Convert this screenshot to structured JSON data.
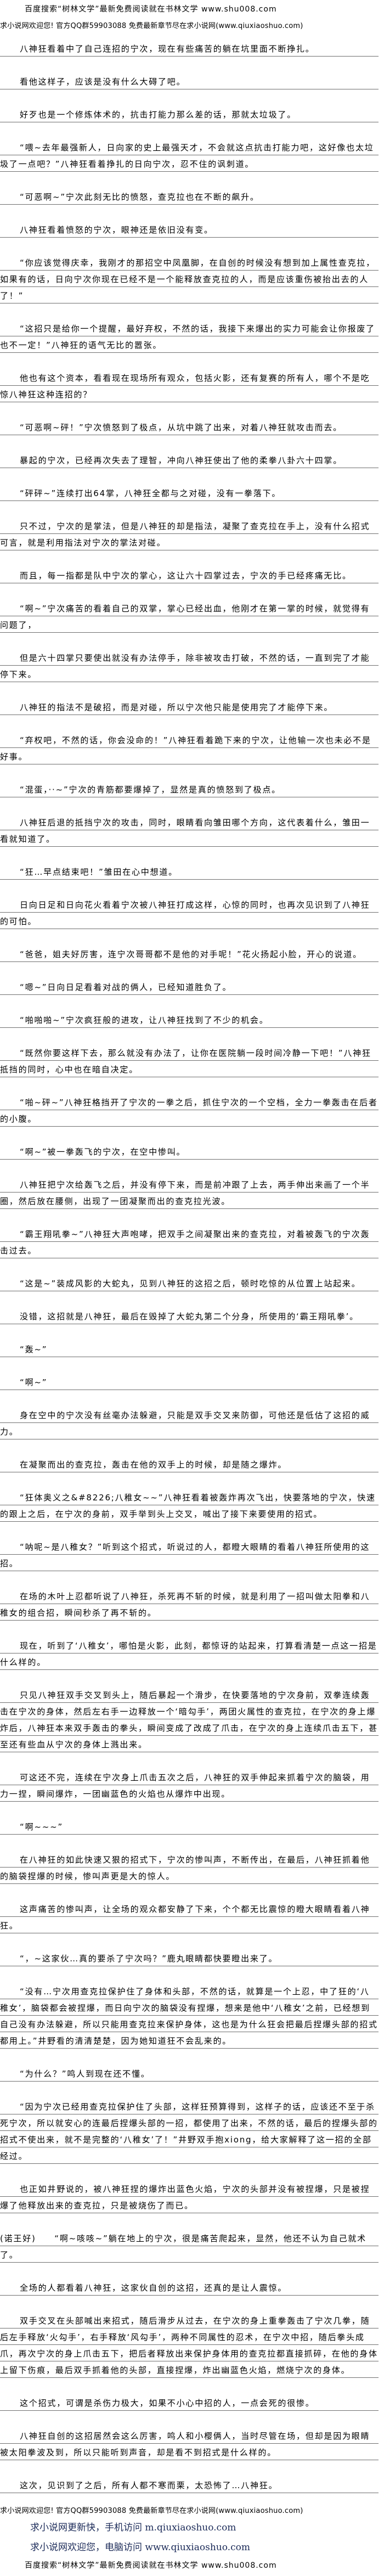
{
  "header": {
    "banner": "百度搜索“树林文学”最新免费阅读就在书林文学 www.shu008.com",
    "qq_banner": "求小说网欢迎您! 官方QQ群59903088 免费最新章节尽在求小说网(www.qiuxiaoshuo.com)"
  },
  "paragraphs": [
    {
      "text": "八神狂看着中了自己连招的宁次，现在有些痛苦的躺在坑里面不断挣扎。"
    },
    {
      "text": "看他这样子，应该是没有什么大碍了吧。"
    },
    {
      "text": "好歹也是一个修炼体术的，抗击打能力那么差的话，那就太垃圾了。"
    },
    {
      "text": "“喂~去年最强新人，日向家的史上最强天才，不会就这点抗击打能力吧，这好像也太垃圾了一点吧？”八神狂看着挣扎的日向宁次，忍不住的讽刺道。"
    },
    {
      "text": "“可恶啊~”宁次此刻无比的愤怒，查克拉也在不断的飙升。"
    },
    {
      "text": "八神狂看着愤怒的宁次，眼神还是依旧没有变。"
    },
    {
      "text": "“你应该觉得庆幸，我刚才的那招空中凤凰脚，在自创的时候没有想到加上属性查克拉，如果有的话，日向宁次你现在已经不是一个能释放查克拉的人，而是应该重伤被抬出去的人了！”"
    },
    {
      "text": "“这招只是给你一个提醒，最好弃权，不然的话，我接下来爆出的实力可能会让你报废了也不一定！”八神狂的语气无比的嚣张。"
    },
    {
      "text": "他也有这个资本，看看现在现场所有观众，包括火影，还有复赛的所有人，哪个不是吃惊八神狂这种连招的？"
    },
    {
      "text": "“可恶啊~砰！”宁次愤怒到了极点，从坑中跳了出来，对着八神狂就攻击而去。"
    },
    {
      "text": "暴起的宁次，已经再次失去了理智，冲向八神狂使出了他的柔拳八卦六十四掌。"
    },
    {
      "text": "“砰砰~”连续打出64掌，八神狂全都与之对碰，没有一拳落下。"
    },
    {
      "text": "只不过，宁次的是掌法，但是八神狂的却是指法，凝聚了查克拉在手上，没有什么招式可言，就是利用指法对宁次的掌法对碰。"
    },
    {
      "text": "而且，每一指都是队中宁次的掌心，这让六十四掌过去，宁次的手已经疼痛无比。"
    },
    {
      "text": "“啊~”宁次痛苦的看着自己的双掌，掌心已经出血，他刚才在第一掌的时候，就觉得有问题了，"
    },
    {
      "text": "但是六十四掌只要使出就没有办法停手，除非被攻击打破，不然的话，一直到完了才能停下来。"
    },
    {
      "text": "八神狂的指法不是破招，而是对碰，所以宁次他只能是使用完了才能停下来。"
    },
    {
      "text": "“弃权吧，不然的话，你会没命的！”八神狂看着跪下来的宁次，让他输一次也未必不是好事。"
    },
    {
      "text": "“混蛋，··~”宁次的青筋都要爆掉了，显然是真的愤怒到了极点。"
    },
    {
      "text": "八神狂后退的抵挡宁次的攻击，同时，眼睛看向雏田哪个方向，这代表着什么，雏田一看就知道了。"
    },
    {
      "text": "“狂…早点结束吧！”雏田在心中想道。"
    },
    {
      "text": "日向日足和日向花火看着宁次被八神狂打成这样，心惊的同时，也再次见识到了八神狂的可怕。"
    },
    {
      "text": "“爸爸，姐夫好厉害，连宁次哥哥都不是他的对手呢！”花火扬起小脸，开心的说道。"
    },
    {
      "text": "“嗯~”日向日足看着对战的俩人，已经知道胜负了。"
    },
    {
      "text": "“啪啪啪~”宁次疯狂般的进攻，让八神狂找到了不少的机会。"
    },
    {
      "text": "“既然你要这样下去，那么就没有办法了，让你在医院躺一段时间冷静一下吧！”八神狂抵挡的同时，心中也在暗自决定。"
    },
    {
      "text": "“啪~砰~”八神狂格挡开了宁次的一拳之后，抓住宁次的一个空档，全力一拳轰击在后者的小腹。"
    },
    {
      "text": "“啊~”被一拳轰飞的宁次，在空中惨叫。"
    },
    {
      "text": "八神狂把宁次给轰飞之后，并没有停下来，而是前冲跟了上去，两手伸出来画了一个半圈，然后放在腰侧，出现了一团凝聚而出的查克拉光波。"
    },
    {
      "text": "“霸王翔吼拳~”八神狂大声咆哮，把双手之间凝聚出来的查克拉，对着被轰飞的宁次轰击过去。"
    },
    {
      "text": "“这是~”装成风影的大蛇丸，见到八神狂的这招之后，顿时吃惊的从位置上站起来。"
    },
    {
      "text": "没错，这招就是八神狂，最后在毁掉了大蛇丸第二个分身，所使用的‘霸王翔吼拳’。"
    },
    {
      "text": "“轰~”"
    },
    {
      "text": "“啊~”"
    },
    {
      "text": "身在空中的宁次没有丝毫办法躲避，只能是双手交叉来防御，可他还是低估了这招的威力。"
    },
    {
      "text": "在凝聚而出的查克拉，轰击在他的双手上的时候，却是随之爆炸。"
    },
    {
      "text": "“狂体奥义之&#8226;八稚女~~”八神狂看着被轰炸再次飞出，快要落地的宁次，快速的跟上之后，在宁次的身前，双手举到头上交叉，喊出了接下来要使用的招式。"
    },
    {
      "text": "“呐呢~是八稚女？”听到这个招式，听说过的人，都瞪大眼睛的看着八神狂所使用的这招。"
    },
    {
      "text": "在场的木叶上忍都听说了八神狂，杀死再不斩的时候，就是利用了一招叫做太阳拳和八稚女的组合招，瞬间秒杀了再不斩的。"
    },
    {
      "text": "现在，听到了‘八稚女’，哪怕是火影，此刻，都惊讶的站起来，打算看清楚一点这一招是什么样的。"
    },
    {
      "text": "只见八神狂双手交叉到头上，随后暴起一个滑步，在快要落地的宁次身前，双拳连续轰击在宁次的身体，然后左右手一边释放一个‘暗勾手’，两团火属性的查克拉，在宁次的身上爆炸后，八神狂本来双手轰击的拳头，瞬间变成了改成了爪击，在宁次的身上连续爪击五下，甚至还有些血从宁次的身体上溅出来。"
    },
    {
      "text": "可这还不完，连续在宁次身上爪击五次之后，八神狂的双手伸起来抓着宁次的脑袋，用力一捏，瞬间爆炸，一团幽蓝色的火焰也从爆炸中出现。"
    },
    {
      "text": "“啊~~~”"
    },
    {
      "text": "在八神狂的如此快速又狠的招式下，宁次的惨叫声，不断传出，在最后，八神狂抓着他的脑袋捏爆的时候，惨叫声更是大的惊人。"
    },
    {
      "text": "这声痛苦的惨叫声，让全场的观众都安静了下来，个个都无比震惊的瞪大眼睛看着八神狂。"
    },
    {
      "text": "“，~这家伙…真的要杀了宁次吗？”鹿丸眼睛都快要瞪出来了。"
    },
    {
      "text": "“没有…宁次用查克拉保护住了身体和头部，不然的话，就算是一个上忍，中了狂的‘八稚女’，脑袋都会被捏爆，而日向宁次的脑袋没有捏爆，想来是他中‘八稚女’之前，已经想到自己没有办法躲避，所以只能用查克拉来保护身体，这也是为什么狂会把最后捏爆头部的招式都用上。”井野看的清清楚楚，因为她知道狂不会乱来的。"
    },
    {
      "text": "“为什么？”鸣人到现在还不懂。"
    },
    {
      "text": "“因为宁次已经用查克拉保护住了头部，这样狂预算得到，这样子的话，应该还不至于杀死宁次，所以就安心的连最后捏爆头部的一招，都使用了出来，不然的话，最后的捏爆头部的招式不使出来，就不是完整的‘八稚女’了！”井野双手抱xiong，给大家解释了这一招的全部经过。"
    },
    {
      "text": "也正如井野说的，被八神狂捏的爆炸出蓝色火焰，宁次的头部并没有被捏爆，只是被捏爆了他释放出来的查克拉，只是被烧伤了而已。"
    },
    {
      "text": "(诺王好)　　“啊~咳咳~”躺在地上的宁次，很是痛苦爬起来，显然，他还不认为自己就术了。",
      "noindent": true
    },
    {
      "text": "全场的人都看着八神狂，这家伙自创的这招，还真的是让人震惊。"
    },
    {
      "text": "双手交叉在头部喊出来招式，随后滑步从过去，在宁次的身上重拳轰击了宁次几拳，随后左手释放‘火勾手’，右手释放‘风勾手’，两种不同属性的忍术，在宁次中招，随后拳头成爪，再次宁次的身上爪击五下，把后者释放出来保护身体用的查克拉都直接抓碎，在他的身体上留下伤痕，最后双手抓着他的头部，直接捏爆，炸出幽蓝色火焰，燃烧宁次的身体。"
    },
    {
      "text": "这个招式，可谓是杀伤力极大，如果不小心中招的人，一点会死的很惨。"
    },
    {
      "text": "八神狂自创的这招居然会这么厉害，鸣人和小樱俩人，当时尽管在场，但却是因为眼睛被太阳拳波及到，所以只能听到声音，却是看不到招式是什么样的。"
    },
    {
      "text": "这次，见识到了之后，所有人都不寒而栗，太恐怖了…八神狂。"
    }
  ],
  "footer": {
    "qq_banner": "求小说网欢迎您! 官方QQ群59903088 免费最新章节尽在求小说网(www.qiuxiaoshuo.com)",
    "mobile_link": "求小说网更新快，手机访问 m.qiuxiaoshuo.com",
    "pc_link": "求小说网欢迎您，电脑访问 www.qiuxiaoshuo.com",
    "banner": "百度搜索“树林文学”最新免费阅读就在书林文学 www.shu008.com"
  },
  "colors": {
    "text": "#000000",
    "rule": "#6f6f6f",
    "footer_link": "#1b2a58"
  }
}
